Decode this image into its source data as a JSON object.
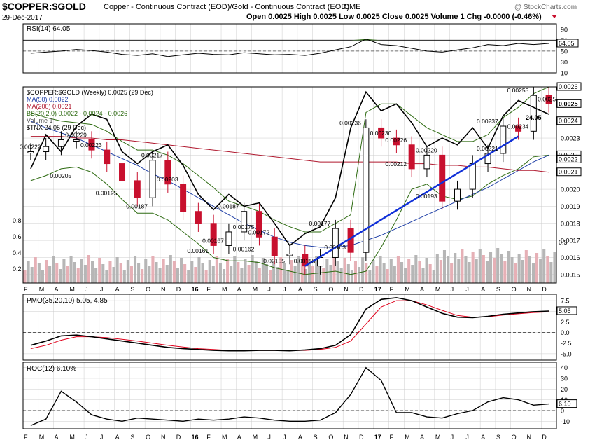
{
  "header": {
    "symbol": "$COPPER:$GOLD",
    "description": "Copper - Continuous Contract (EOD)/Gold - Continuous Contract (EOD)",
    "exchange": "CME",
    "date": "29-Dec-2017",
    "quote": "Open 0.0025  High 0.0025  Low 0.0025  Close 0.0025  Volume 1  Chg -0.0000 (-0.46%)",
    "credit": "@ StockCharts.com"
  },
  "colors": {
    "price_up": "#000000",
    "price_down": "#c8102e",
    "ma50": "#1f3fa6",
    "ma200": "#b0192f",
    "bollinger": "#2e6b12",
    "tnx": "#000000",
    "trendline": "#1030d8",
    "volume_up": "#b6b6b6",
    "volume_down": "#e6b0b6",
    "rsi_fill": "#2e6b12",
    "pmo_signal": "#e0001b",
    "grid": "#cccccc"
  },
  "chart_data": [
    {
      "type": "line",
      "panel": "rsi",
      "title": "RSI(14) 64.05",
      "ylim": [
        10,
        100
      ],
      "y_ticks": [
        "90",
        "70",
        "50",
        "30",
        "10"
      ],
      "last_value_label": "64.05",
      "x": [
        "Feb-15",
        "Mar-15",
        "Apr-15",
        "May-15",
        "Jun-15",
        "Jul-15",
        "Aug-15",
        "Sep-15",
        "Oct-15",
        "Nov-15",
        "Dec-15",
        "Jan-16",
        "Feb-16",
        "Mar-16",
        "Apr-16",
        "May-16",
        "Jun-16",
        "Jul-16",
        "Aug-16",
        "Sep-16",
        "Oct-16",
        "Nov-16",
        "Dec-16",
        "Jan-17",
        "Feb-17",
        "Mar-17",
        "Apr-17",
        "May-17",
        "Jun-17",
        "Jul-17",
        "Aug-17",
        "Sep-17",
        "Oct-17",
        "Nov-17",
        "Dec-17"
      ],
      "series": [
        {
          "values": [
            46,
            48,
            50,
            53,
            51,
            48,
            44,
            42,
            45,
            40,
            43,
            46,
            44,
            43,
            47,
            45,
            43,
            44,
            42,
            46,
            52,
            58,
            72,
            62,
            60,
            55,
            50,
            48,
            52,
            56,
            62,
            60,
            64,
            62,
            64
          ]
        }
      ]
    },
    {
      "type": "candlestick",
      "panel": "price",
      "title": "$COPPER:$GOLD (Weekly) 0.0025 (29 Dec)",
      "legend": [
        {
          "label": "$COPPER:$GOLD (Weekly) 0.0025 (29 Dec)"
        },
        {
          "label": "MA(50) 0.0022"
        },
        {
          "label": "MA(200) 0.0021"
        },
        {
          "label": "BB(20,2.0) 0.0022 - 0.0024 - 0.0026"
        },
        {
          "label": "Volume 1"
        },
        {
          "label": "$TNX 24.05 (29 Dec)"
        }
      ],
      "ylim": [
        0.00145,
        0.0026
      ],
      "y_ticks": [
        "0.0026",
        "0.0025",
        "0.0024",
        "0.0023",
        "0.0022",
        "0.0021",
        "0.0020",
        "0.0019",
        "0.0018",
        "0.0017",
        "0.0016",
        "0.0015"
      ],
      "y_labels_right_highlight": [
        "0.0026",
        "0.0025",
        "0.0024",
        "0.0022",
        "0.0022",
        "0.0021"
      ],
      "tnx_label": "24.05",
      "left_axis_ticks": [
        "0.8",
        "0.6",
        "0.4",
        "0.2"
      ],
      "right_volume_label": "0.5",
      "x": [
        "Feb-15",
        "Mar-15",
        "Apr-15",
        "May-15",
        "Jun-15",
        "Jul-15",
        "Aug-15",
        "Sep-15",
        "Oct-15",
        "Nov-15",
        "Dec-15",
        "Jan-16",
        "Feb-16",
        "Mar-16",
        "Apr-16",
        "May-16",
        "Jun-16",
        "Jul-16",
        "Aug-16",
        "Sep-16",
        "Oct-16",
        "Nov-16",
        "Dec-16",
        "Jan-17",
        "Feb-17",
        "Mar-17",
        "Apr-17",
        "May-17",
        "Jun-17",
        "Jul-17",
        "Aug-17",
        "Sep-17",
        "Oct-17",
        "Nov-17",
        "Dec-17"
      ],
      "series": [
        {
          "name": "$COPPER:$GOLD",
          "values": [
            0.00222,
            0.00225,
            0.00229,
            0.00229,
            0.00223,
            0.00215,
            0.00205,
            0.00195,
            0.00217,
            0.00203,
            0.00187,
            0.0018,
            0.00167,
            0.00175,
            0.00187,
            0.00172,
            0.00161,
            0.00162,
            0.00155,
            0.0016,
            0.00177,
            0.00163,
            0.00236,
            0.0023,
            0.00226,
            0.00212,
            0.0022,
            0.00193,
            0.002,
            0.00215,
            0.00221,
            0.00237,
            0.00234,
            0.00255,
            0.0025
          ]
        },
        {
          "name": "MA(50)",
          "values": [
            0.0024,
            0.00236,
            0.00233,
            0.0023,
            0.00226,
            0.00222,
            0.00218,
            0.00214,
            0.00209,
            0.00205,
            0.002,
            0.00195,
            0.0019,
            0.00185,
            0.0018,
            0.00176,
            0.00172,
            0.00169,
            0.00167,
            0.00166,
            0.00166,
            0.00167,
            0.0017,
            0.00173,
            0.00177,
            0.00181,
            0.00185,
            0.00189,
            0.00193,
            0.00197,
            0.00201,
            0.00206,
            0.00211,
            0.00216,
            0.0022
          ]
        },
        {
          "name": "MA(200)",
          "values": [
            0.00231,
            0.00231,
            0.00231,
            0.0023,
            0.0023,
            0.00229,
            0.00229,
            0.00228,
            0.00227,
            0.00226,
            0.00225,
            0.00224,
            0.00223,
            0.00222,
            0.00221,
            0.0022,
            0.00219,
            0.00218,
            0.00217,
            0.00216,
            0.00216,
            0.00216,
            0.00216,
            0.00216,
            0.00216,
            0.00215,
            0.00215,
            0.00214,
            0.00214,
            0.00213,
            0.00213,
            0.00212,
            0.00211,
            0.00211,
            0.0021
          ]
        },
        {
          "name": "$TNX",
          "values": [
            0.00212,
            0.00232,
            0.00222,
            0.00237,
            0.00244,
            0.00241,
            0.00222,
            0.00215,
            0.00222,
            0.00226,
            0.00214,
            0.00197,
            0.00188,
            0.00197,
            0.0019,
            0.00192,
            0.0018,
            0.00167,
            0.00174,
            0.00178,
            0.00195,
            0.00236,
            0.00257,
            0.00246,
            0.0025,
            0.00239,
            0.00225,
            0.0023,
            0.00226,
            0.00236,
            0.00224,
            0.00243,
            0.00252,
            0.00248,
            0.00244
          ]
        }
      ],
      "bollinger_upper": [
        0.00245,
        0.00242,
        0.0024,
        0.00239,
        0.00238,
        0.00234,
        0.00228,
        0.00223,
        0.00223,
        0.0022,
        0.00215,
        0.00208,
        0.00201,
        0.00193,
        0.0019,
        0.00187,
        0.00182,
        0.00178,
        0.00175,
        0.00175,
        0.0018,
        0.00185,
        0.00245,
        0.0025,
        0.0025,
        0.00243,
        0.00236,
        0.00232,
        0.00228,
        0.00228,
        0.00232,
        0.00242,
        0.00248,
        0.00256,
        0.0026
      ],
      "bollinger_lower": [
        0.00205,
        0.00208,
        0.00212,
        0.00213,
        0.0021,
        0.00203,
        0.00194,
        0.00186,
        0.00186,
        0.00182,
        0.00175,
        0.00168,
        0.0016,
        0.00158,
        0.00158,
        0.00157,
        0.00154,
        0.00152,
        0.0015,
        0.00151,
        0.00152,
        0.0015,
        0.00152,
        0.00166,
        0.00182,
        0.002,
        0.00203,
        0.00196,
        0.00194,
        0.00196,
        0.00203,
        0.00208,
        0.00212,
        0.00219,
        0.0022
      ],
      "price_labels": [
        {
          "text": "0.00222",
          "x": "Feb-15",
          "value": 0.00222
        },
        {
          "text": "0.00229",
          "x": "May-15",
          "value": 0.00229
        },
        {
          "text": "0.00223",
          "x": "Jun-15",
          "value": 0.00223
        },
        {
          "text": "0.00205",
          "x": "Apr-15",
          "value": 0.00205
        },
        {
          "text": "0.00195",
          "x": "Jul-15",
          "value": 0.00195
        },
        {
          "text": "0.00217",
          "x": "Oct-15",
          "value": 0.00217
        },
        {
          "text": "0.00203",
          "x": "Nov-15",
          "value": 0.00203
        },
        {
          "text": "0.00187",
          "x": "Sep-15",
          "value": 0.00187
        },
        {
          "text": "0.00187",
          "x": "Mar-16",
          "value": 0.00187
        },
        {
          "text": "0.00175",
          "x": "Apr-16",
          "value": 0.00175
        },
        {
          "text": "0.00172",
          "x": "May-16",
          "value": 0.00172
        },
        {
          "text": "0.00167",
          "x": "Feb-16",
          "value": 0.00167
        },
        {
          "text": "0.00161",
          "x": "Jan-16",
          "value": 0.00161
        },
        {
          "text": "0.00162",
          "x": "Apr-16",
          "value": 0.00162
        },
        {
          "text": "0.00155",
          "x": "Jun-16",
          "value": 0.00155
        },
        {
          "text": "0.00155",
          "x": "Aug-16",
          "value": 0.00155
        },
        {
          "text": "0.00177",
          "x": "Sep-16",
          "value": 0.00177
        },
        {
          "text": "0.00163",
          "x": "Oct-16",
          "value": 0.00163
        },
        {
          "text": "0.00236",
          "x": "Nov-16",
          "value": 0.00236
        },
        {
          "text": "0.00230",
          "x": "Jan-17",
          "value": 0.0023
        },
        {
          "text": "0.00226",
          "x": "Feb-17",
          "value": 0.00226
        },
        {
          "text": "0.00212",
          "x": "Feb-17",
          "value": 0.00212
        },
        {
          "text": "0.00220",
          "x": "Apr-17",
          "value": 0.0022
        },
        {
          "text": "0.00193",
          "x": "Apr-17",
          "value": 0.00193
        },
        {
          "text": "0.00237",
          "x": "Aug-17",
          "value": 0.00237
        },
        {
          "text": "0.00221",
          "x": "Aug-17",
          "value": 0.00221
        },
        {
          "text": "0.00234",
          "x": "Oct-17",
          "value": 0.00234
        },
        {
          "text": "0.00255",
          "x": "Oct-17",
          "value": 0.00255
        },
        {
          "text": "0.0025",
          "x": "Dec-17",
          "value": 0.0025
        }
      ],
      "trendline": {
        "from": {
          "x": "Aug-16",
          "value": 0.00155
        },
        "to": {
          "x": "Oct-17",
          "value": 0.00231
        }
      },
      "volume_note": "volume bars on left 0-0.8 scale"
    },
    {
      "type": "line",
      "panel": "pmo",
      "title": "PMO(35,20,10) 5.05, 4.85",
      "ylim": [
        -6.5,
        9
      ],
      "y_ticks": [
        "7.5",
        "5.0",
        "2.5",
        "0.0",
        "-2.5",
        "-5.0"
      ],
      "last_value_label": "5.05",
      "x": [
        "Feb-15",
        "Mar-15",
        "Apr-15",
        "May-15",
        "Jun-15",
        "Jul-15",
        "Aug-15",
        "Sep-15",
        "Oct-15",
        "Nov-15",
        "Dec-15",
        "Jan-16",
        "Feb-16",
        "Mar-16",
        "Apr-16",
        "May-16",
        "Jun-16",
        "Jul-16",
        "Aug-16",
        "Sep-16",
        "Oct-16",
        "Nov-16",
        "Dec-16",
        "Jan-17",
        "Feb-17",
        "Mar-17",
        "Apr-17",
        "May-17",
        "Jun-17",
        "Jul-17",
        "Aug-17",
        "Sep-17",
        "Oct-17",
        "Nov-17",
        "Dec-17"
      ],
      "series": [
        {
          "name": "PMO",
          "values": [
            -3.0,
            -2.0,
            -0.8,
            -0.6,
            -1.0,
            -1.5,
            -2.0,
            -2.5,
            -3.0,
            -3.5,
            -3.8,
            -4.0,
            -4.2,
            -4.3,
            -4.3,
            -4.2,
            -4.2,
            -4.3,
            -4.1,
            -3.8,
            -3.0,
            -0.5,
            5.5,
            7.8,
            8.2,
            7.5,
            6.0,
            4.5,
            3.6,
            3.5,
            3.8,
            4.3,
            4.6,
            4.9,
            5.05
          ]
        },
        {
          "name": "Signal",
          "values": [
            -3.8,
            -3.0,
            -1.8,
            -1.0,
            -1.0,
            -1.2,
            -1.6,
            -2.0,
            -2.5,
            -3.0,
            -3.4,
            -3.8,
            -4.0,
            -4.2,
            -4.2,
            -4.2,
            -4.2,
            -4.2,
            -4.2,
            -4.0,
            -3.5,
            -2.0,
            2.0,
            6.0,
            7.5,
            7.5,
            6.5,
            5.2,
            4.0,
            3.6,
            3.7,
            4.1,
            4.4,
            4.7,
            4.85
          ]
        }
      ]
    },
    {
      "type": "line",
      "panel": "roc",
      "title": "ROC(12) 6.10%",
      "ylim": [
        -17,
        45
      ],
      "y_ticks": [
        "40",
        "30",
        "20",
        "10",
        "0",
        "-10"
      ],
      "last_value_label": "6.10",
      "x": [
        "Feb-15",
        "Mar-15",
        "Apr-15",
        "May-15",
        "Jun-15",
        "Jul-15",
        "Aug-15",
        "Sep-15",
        "Oct-15",
        "Nov-15",
        "Dec-15",
        "Jan-16",
        "Feb-16",
        "Mar-16",
        "Apr-16",
        "May-16",
        "Jun-16",
        "Jul-16",
        "Aug-16",
        "Sep-16",
        "Oct-16",
        "Nov-16",
        "Dec-16",
        "Jan-17",
        "Feb-17",
        "Mar-17",
        "Apr-17",
        "May-17",
        "Jun-17",
        "Jul-17",
        "Aug-17",
        "Sep-17",
        "Oct-17",
        "Nov-17",
        "Dec-17"
      ],
      "series": [
        {
          "name": "ROC",
          "values": [
            -14,
            -8,
            18,
            8,
            -4,
            -8,
            -10,
            -7,
            -8,
            -9,
            -10,
            -8,
            -9,
            -8,
            -6,
            -7,
            -9,
            -10,
            -10,
            -9,
            -2,
            15,
            40,
            28,
            -2,
            -2,
            -6,
            -7,
            -3,
            0,
            8,
            12,
            10,
            5,
            6.1
          ]
        }
      ]
    }
  ],
  "x_axis": {
    "top_labels": [
      "F",
      "M",
      "A",
      "M",
      "J",
      "J",
      "A",
      "S",
      "O",
      "N",
      "D",
      "16",
      "F",
      "M",
      "A",
      "M",
      "J",
      "J",
      "A",
      "S",
      "O",
      "N",
      "D",
      "17",
      "F",
      "M",
      "A",
      "M",
      "J",
      "J",
      "A",
      "S",
      "O",
      "N",
      "D"
    ],
    "bottom_labels": [
      "F",
      "M",
      "A",
      "M",
      "J",
      "J",
      "A",
      "S",
      "O",
      "N",
      "D",
      "16",
      "F",
      "M",
      "A",
      "M",
      "J",
      "J",
      "A",
      "S",
      "O",
      "N",
      "D",
      "17",
      "F",
      "M",
      "A",
      "M",
      "J",
      "J",
      "A",
      "S",
      "O",
      "N",
      "D"
    ]
  }
}
